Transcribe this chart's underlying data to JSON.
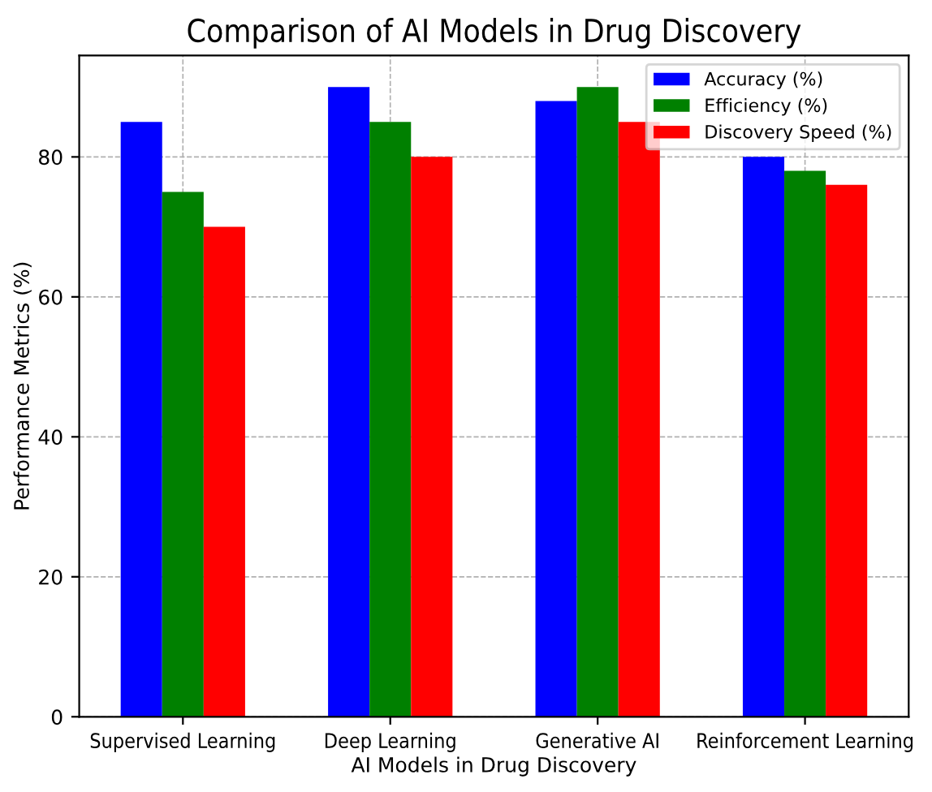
{
  "chart_data": {
    "type": "bar",
    "title": "Comparison of AI Models in Drug Discovery",
    "xlabel": "AI Models in Drug Discovery",
    "ylabel": "Performance Metrics (%)",
    "categories": [
      "Supervised Learning",
      "Deep Learning",
      "Generative AI",
      "Reinforcement Learning"
    ],
    "series": [
      {
        "name": "Accuracy (%)",
        "color": "#0000ff",
        "values": [
          85,
          90,
          88,
          80
        ]
      },
      {
        "name": "Efficiency (%)",
        "color": "#008000",
        "values": [
          75,
          85,
          90,
          78
        ]
      },
      {
        "name": "Discovery Speed (%)",
        "color": "#ff0000",
        "values": [
          70,
          80,
          85,
          76
        ]
      }
    ],
    "ylim": [
      0,
      94.5
    ],
    "yticks": [
      0,
      20,
      40,
      60,
      80
    ],
    "grid": true,
    "legend": "top right"
  }
}
